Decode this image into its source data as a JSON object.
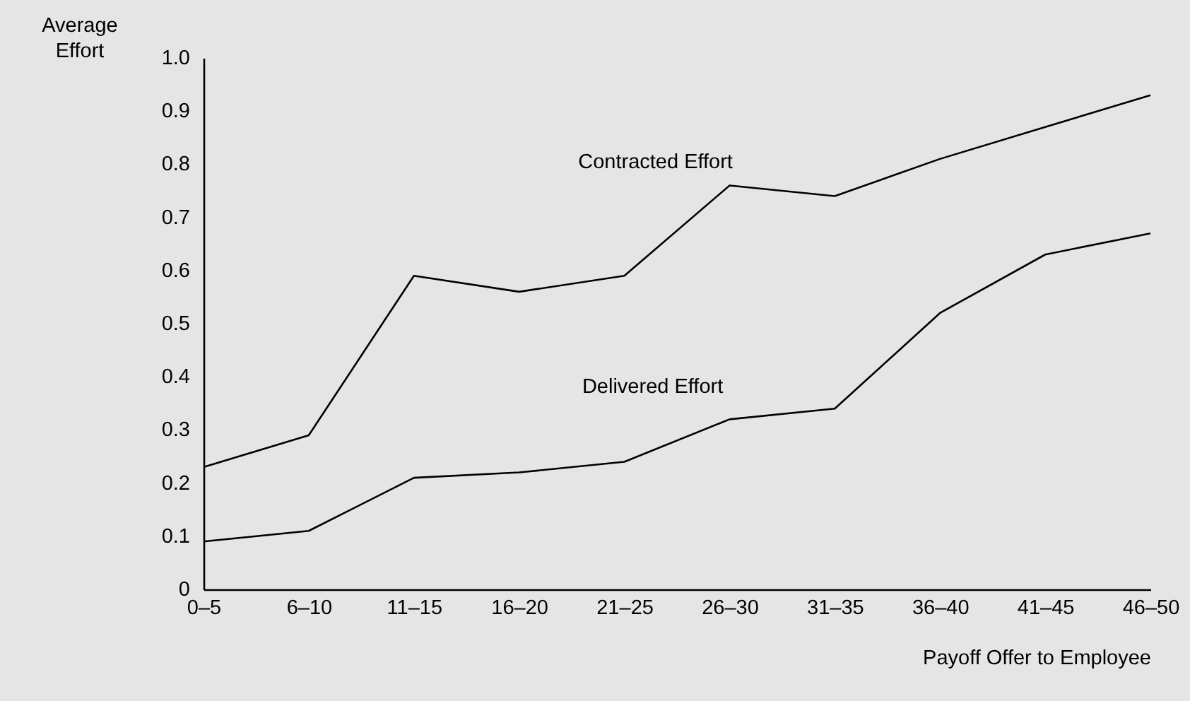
{
  "chart_data": {
    "type": "line",
    "xlabel": "Payoff Offer to Employee",
    "ylabel": "Average Effort",
    "categories": [
      "0–5",
      "6–10",
      "11–15",
      "16–20",
      "21–25",
      "26–30",
      "31–35",
      "36–40",
      "41–45",
      "46–50"
    ],
    "series": [
      {
        "name": "Contracted Effort",
        "color": "#000000",
        "values": [
          0.23,
          0.29,
          0.59,
          0.56,
          0.59,
          0.76,
          0.74,
          0.81,
          0.87,
          0.93
        ]
      },
      {
        "name": "Delivered Effort",
        "color": "#000000",
        "values": [
          0.09,
          0.11,
          0.21,
          0.22,
          0.24,
          0.32,
          0.34,
          0.52,
          0.63,
          0.67
        ]
      }
    ],
    "ylim": [
      0,
      1.0
    ],
    "yticks": [
      0,
      0.1,
      0.2,
      0.3,
      0.4,
      0.5,
      0.6,
      0.7,
      0.8,
      0.9,
      {
        "value": 1.0,
        "label": "1.0"
      }
    ],
    "grid": false,
    "legend": false,
    "marker": "none",
    "line_style": "solid"
  }
}
